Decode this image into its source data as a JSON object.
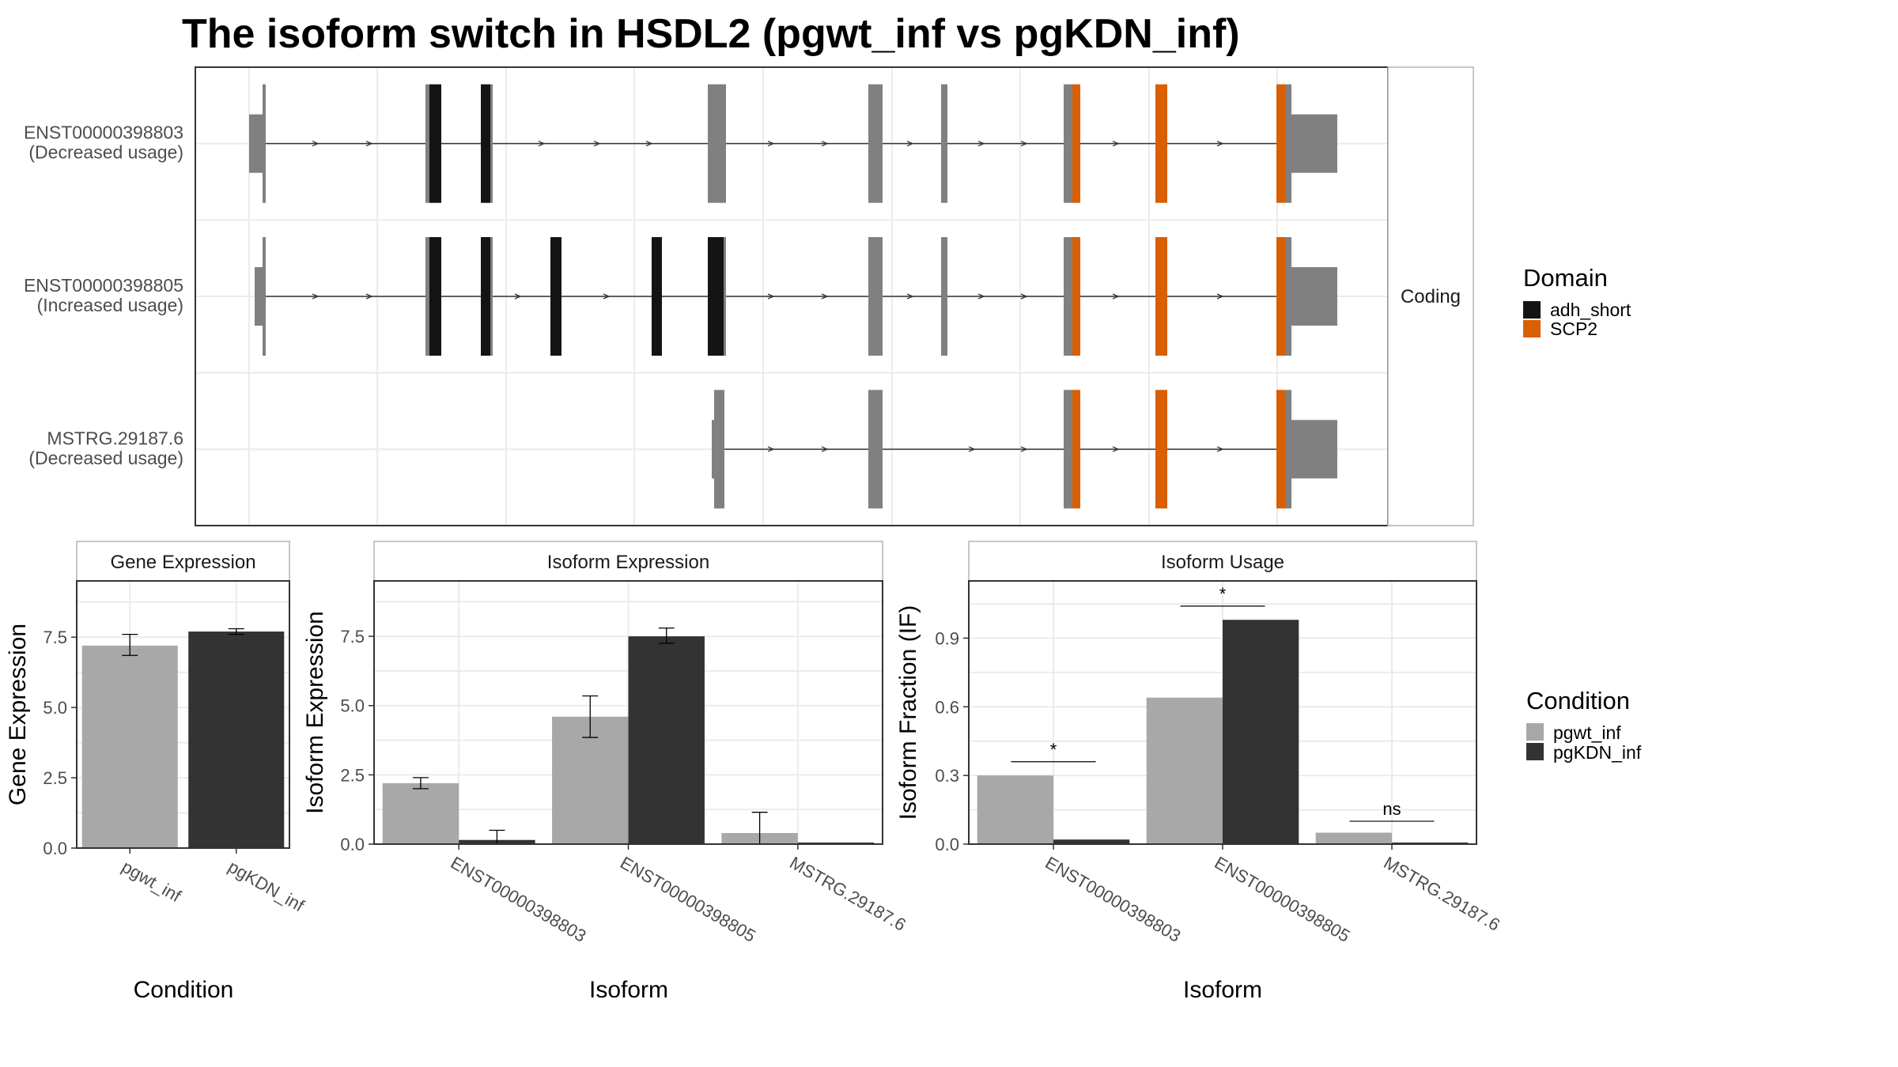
{
  "title": "The isoform switch in HSDL2 (pgwt_inf vs pgKDN_inf)",
  "colors": {
    "pgwt_inf": "#a8a8a8",
    "pgKDN_inf": "#333333",
    "non_domain_exon": "#808080",
    "adh_short": "#141414",
    "SCP2": "#d95f02",
    "grid": "#ebebeb",
    "panel_border": "#333333"
  },
  "structure": {
    "strip_label": "Coding",
    "isoforms": [
      {
        "id": "ENST00000398803",
        "usage": "(Decreased usage)"
      },
      {
        "id": "ENST00000398805",
        "usage": "(Increased usage)"
      },
      {
        "id": "MSTRG.29187.6",
        "usage": "(Decreased usage)"
      }
    ]
  },
  "legend_domain": {
    "title": "Domain",
    "items": [
      {
        "label": "adh_short",
        "color": "#141414"
      },
      {
        "label": "SCP2",
        "color": "#d95f02"
      }
    ]
  },
  "legend_condition": {
    "title": "Condition",
    "items": [
      {
        "label": "pgwt_inf",
        "color": "#a8a8a8"
      },
      {
        "label": "pgKDN_inf",
        "color": "#333333"
      }
    ]
  },
  "chart_data": [
    {
      "type": "bar",
      "strip": "Gene Expression",
      "xlabel": "Condition",
      "ylabel": "Gene Expression",
      "ylim": [
        0,
        9.5
      ],
      "yticks": [
        "0.0",
        "2.5",
        "5.0",
        "7.5"
      ],
      "categories": [
        "pgwt_inf",
        "pgKDN_inf"
      ],
      "series": [
        {
          "name": "pgwt_inf",
          "values": [
            7.2,
            null
          ],
          "err_low": [
            6.85,
            null
          ],
          "err_high": [
            7.6,
            null
          ]
        },
        {
          "name": "pgKDN_inf",
          "values": [
            null,
            7.7
          ],
          "err_low": [
            null,
            7.6
          ],
          "err_high": [
            null,
            7.8
          ]
        }
      ]
    },
    {
      "type": "bar",
      "strip": "Isoform Expression",
      "xlabel": "Isoform",
      "ylabel": "Isoform Expression",
      "ylim": [
        0,
        9.5
      ],
      "yticks": [
        "0.0",
        "2.5",
        "5.0",
        "7.5"
      ],
      "categories": [
        "ENST00000398803",
        "ENST00000398805",
        "MSTRG.29187.6"
      ],
      "series": [
        {
          "name": "pgwt_inf",
          "values": [
            2.2,
            4.6,
            0.4
          ],
          "err_low": [
            2.0,
            3.85,
            0.0
          ],
          "err_high": [
            2.4,
            5.35,
            1.15
          ]
        },
        {
          "name": "pgKDN_inf",
          "values": [
            0.15,
            7.5,
            0.0
          ],
          "err_low": [
            0.0,
            7.25,
            0.0
          ],
          "err_high": [
            0.5,
            7.8,
            0.0
          ]
        }
      ]
    },
    {
      "type": "bar",
      "strip": "Isoform Usage",
      "xlabel": "Isoform",
      "ylabel": "Isoform Fraction (IF)",
      "ylim": [
        0,
        1.15
      ],
      "yticks": [
        "0.0",
        "0.3",
        "0.6",
        "0.9"
      ],
      "categories": [
        "ENST00000398803",
        "ENST00000398805",
        "MSTRG.29187.6"
      ],
      "series": [
        {
          "name": "pgwt_inf",
          "values": [
            0.3,
            0.64,
            0.05
          ]
        },
        {
          "name": "pgKDN_inf",
          "values": [
            0.02,
            0.98,
            0.0
          ]
        }
      ],
      "significance": [
        {
          "label": "*",
          "y": 0.36
        },
        {
          "label": "*",
          "y": 1.04
        },
        {
          "label": "ns",
          "y": 0.1
        }
      ]
    }
  ]
}
